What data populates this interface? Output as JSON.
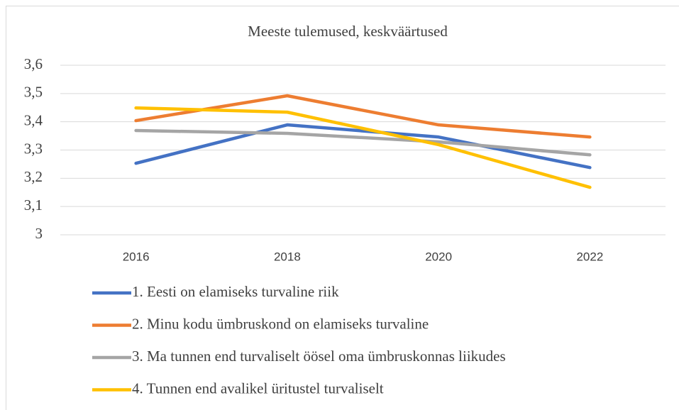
{
  "chart_data": {
    "type": "line",
    "title": "Meeste tulemused, keskväärtused",
    "categories": [
      "2016",
      "2018",
      "2020",
      "2022"
    ],
    "series": [
      {
        "name": "1. Eesti on elamiseks turvaline riik",
        "color": "#4472c4",
        "values": [
          3.253,
          3.389,
          3.346,
          3.238
        ]
      },
      {
        "name": "2. Minu kodu ümbruskond on elamiseks turvaline",
        "color": "#ed7d31",
        "values": [
          3.404,
          3.492,
          3.389,
          3.346
        ]
      },
      {
        "name": "3. Ma tunnen end turvaliselt öösel oma ümbruskonnas liikudes",
        "color": "#a5a5a5",
        "values": [
          3.369,
          3.359,
          3.329,
          3.283
        ]
      },
      {
        "name": "4. Tunnen end avalikel üritustel turvaliselt",
        "color": "#ffc000",
        "values": [
          3.449,
          3.434,
          3.319,
          3.168
        ]
      }
    ],
    "ylim": [
      3,
      3.6
    ],
    "yticks": [
      3,
      {
        "value": 3.1,
        "label": "3,1"
      },
      {
        "value": 3.2,
        "label": "3,2"
      },
      {
        "value": 3.3,
        "label": "3,3"
      },
      {
        "value": 3.4,
        "label": "3,4"
      },
      {
        "value": 3.5,
        "label": "3,5"
      },
      {
        "value": 3.6,
        "label": "3,6"
      }
    ],
    "grid": true,
    "legend": "bottom"
  }
}
